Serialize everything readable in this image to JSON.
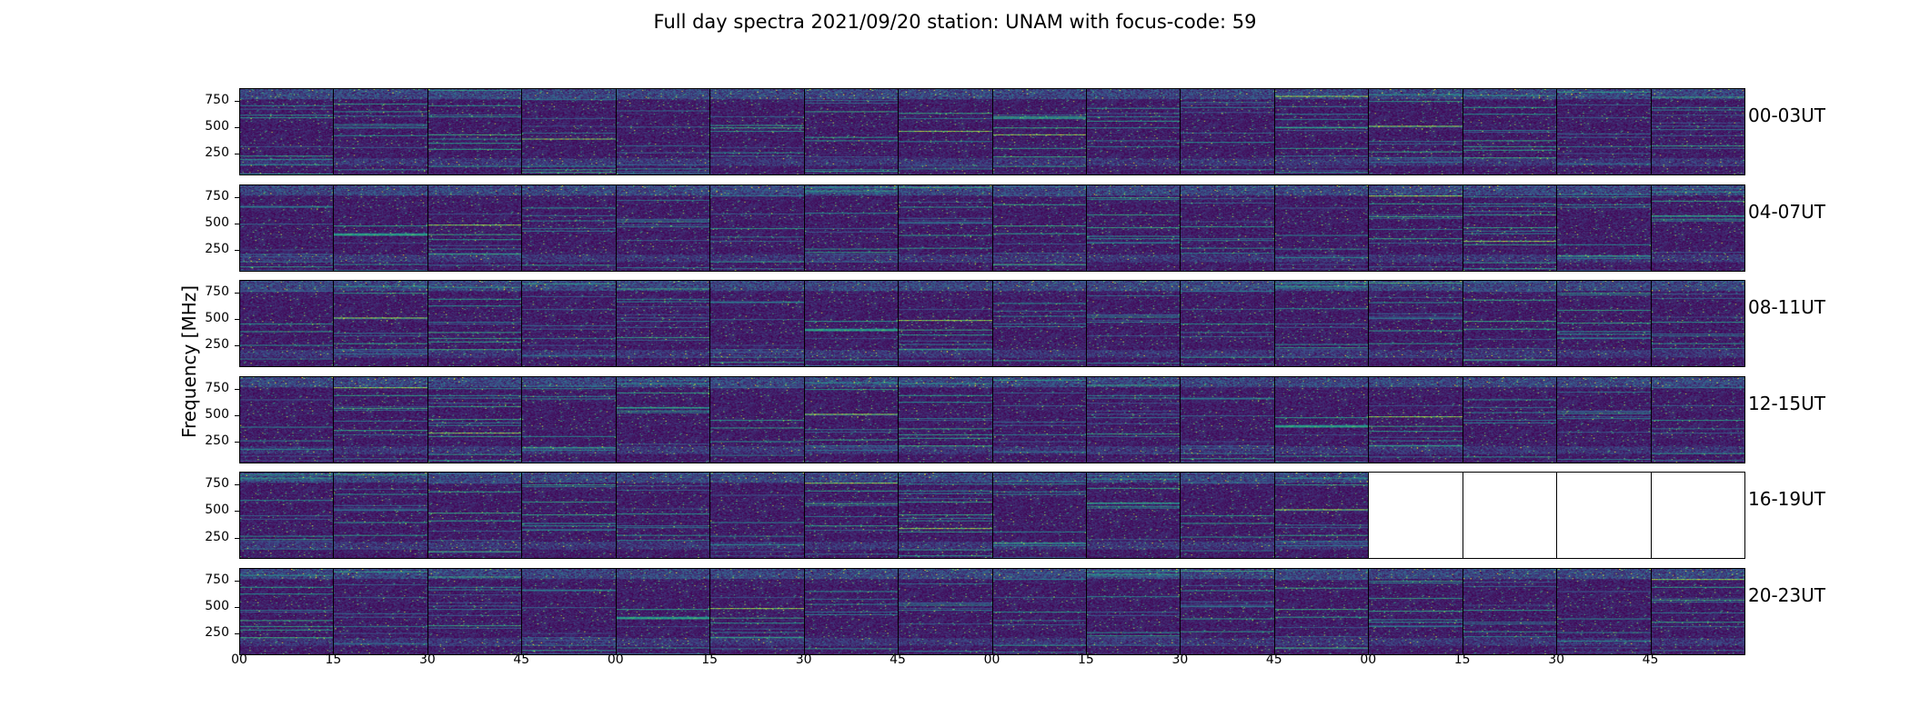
{
  "chart_data": {
    "type": "heatmap",
    "title": "Full day spectra 2021/09/20 station: UNAM with focus-code: 59",
    "ylabel": "Frequency [MHz]",
    "ylim": [
      45,
      870
    ],
    "yticks": [
      "750",
      "500",
      "250"
    ],
    "ytick_values": [
      750,
      500,
      250
    ],
    "xticks": [
      "00",
      "15",
      "30",
      "45",
      "00",
      "15",
      "30",
      "45",
      "00",
      "15",
      "30",
      "45",
      "00",
      "15",
      "30",
      "45"
    ],
    "colormap": "viridis",
    "colors": {
      "background": "#440154",
      "low": "#3b0f70",
      "mid": "#21918c",
      "high": "#fde725"
    },
    "rows": [
      {
        "label": "00-03UT",
        "panels_with_data": 16
      },
      {
        "label": "04-07UT",
        "panels_with_data": 16
      },
      {
        "label": "08-11UT",
        "panels_with_data": 16
      },
      {
        "label": "12-15UT",
        "panels_with_data": 16
      },
      {
        "label": "16-19UT",
        "panels_with_data": 12
      },
      {
        "label": "20-23UT",
        "panels_with_data": 16
      }
    ],
    "panels_per_row": 16
  }
}
